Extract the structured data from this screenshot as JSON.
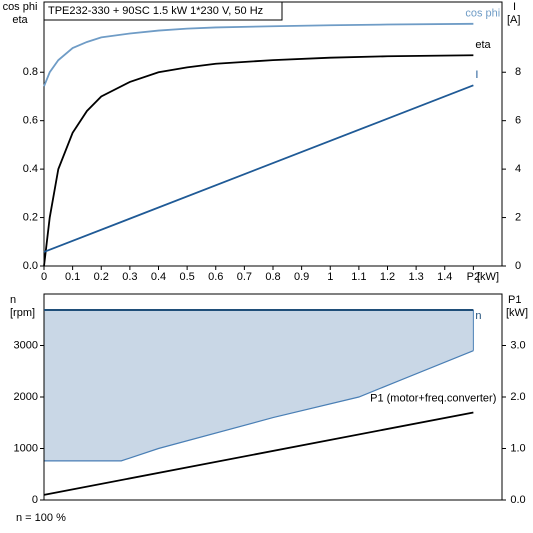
{
  "chart_data": [
    {
      "type": "line",
      "title": "TPE232-330 + 90SC   1.5 kW   1*230 V, 50 Hz",
      "ylabel": [
        "cos phi",
        "eta"
      ],
      "y2label": [
        "I",
        "[A]"
      ],
      "xlabel": "[kW]",
      "xlim": [
        0,
        1.6
      ],
      "xticks": [
        0,
        0.1,
        0.2,
        0.3,
        0.4,
        0.5,
        0.6,
        0.7,
        0.8,
        0.9,
        1,
        1.1,
        1.2,
        1.3,
        1.4,
        {
          "value": 1.5,
          "label": "P2"
        }
      ],
      "ylim": [
        0,
        1.09
      ],
      "yticks": [
        {
          "value": 0,
          "label": "0.0"
        },
        0.2,
        0.4,
        0.6,
        0.8
      ],
      "y2lim": [
        0,
        10.9
      ],
      "y2ticks": [
        0,
        2,
        4,
        6,
        8
      ],
      "series": [
        {
          "name": "cos phi",
          "color": "#6f9cc6",
          "x": [
            0,
            0.02,
            0.05,
            0.1,
            0.15,
            0.2,
            0.3,
            0.4,
            0.5,
            0.6,
            0.8,
            1.0,
            1.2,
            1.5
          ],
          "values": [
            0.742,
            0.8,
            0.85,
            0.9,
            0.925,
            0.944,
            0.96,
            0.972,
            0.98,
            0.985,
            0.99,
            0.994,
            0.997,
            1.0
          ]
        },
        {
          "name": "eta",
          "color": "#000000",
          "x": [
            0,
            0.02,
            0.05,
            0.1,
            0.15,
            0.2,
            0.3,
            0.4,
            0.5,
            0.6,
            0.8,
            1.0,
            1.2,
            1.5
          ],
          "values": [
            0,
            0.2,
            0.4,
            0.55,
            0.64,
            0.7,
            0.76,
            0.8,
            0.82,
            0.835,
            0.85,
            0.86,
            0.866,
            0.87
          ]
        },
        {
          "name": "I",
          "color": "#1f5a96",
          "axis": "y2",
          "x": [
            0,
            1.5
          ],
          "values": [
            0.58,
            7.46
          ]
        }
      ]
    },
    {
      "type": "line",
      "ylabel": [
        "n",
        "[rpm]"
      ],
      "y2label": [
        "P1",
        "[kW]"
      ],
      "note": "n = 100 %",
      "xlim": [
        0,
        1.6
      ],
      "ylim": [
        0,
        4000
      ],
      "yticks": [
        0,
        1000,
        2000,
        3000
      ],
      "y2lim": [
        0,
        4.0
      ],
      "y2ticks": [
        {
          "value": 0,
          "label": "0.0"
        },
        {
          "value": 1,
          "label": "1.0"
        },
        {
          "value": 2,
          "label": "2.0"
        },
        {
          "value": 3,
          "label": "3.0"
        }
      ],
      "series": [
        {
          "name": "n",
          "color": "#1f4e79",
          "fill": "#c9d7e6",
          "x": [
            0,
            0.27,
            0.4,
            0.8,
            1.1,
            1.5
          ],
          "values": [
            3690,
            3690,
            3690,
            3690,
            3690,
            3690
          ],
          "lower": [
            760,
            760,
            1000,
            1600,
            2000,
            2900
          ]
        },
        {
          "name": "P1 (motor+freq.converter)",
          "color": "#000000",
          "axis": "y2",
          "x": [
            0,
            1.5
          ],
          "values": [
            0.1,
            1.7
          ]
        }
      ]
    }
  ]
}
